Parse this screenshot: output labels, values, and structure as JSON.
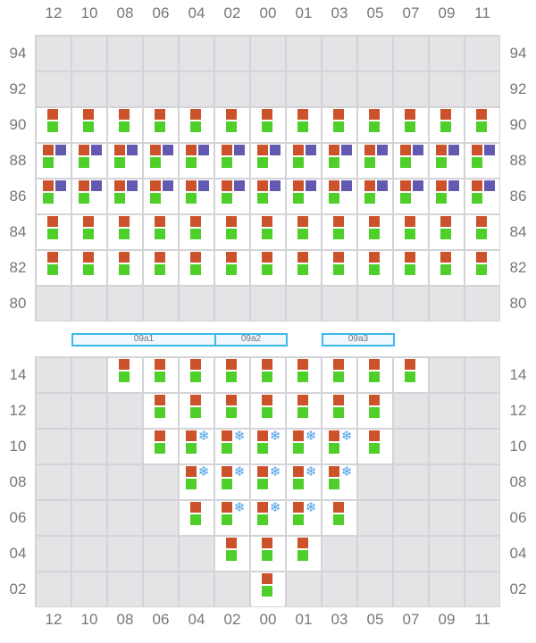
{
  "columns": [
    "12",
    "10",
    "08",
    "06",
    "04",
    "02",
    "00",
    "01",
    "03",
    "05",
    "07",
    "09",
    "11"
  ],
  "legend_codes": {
    ".": "empty",
    "a": "red+green",
    "b": "red+purple+green",
    "s": "red+snowflake+green"
  },
  "colors": {
    "red": "#cc522b",
    "green": "#4fcf2a",
    "purple": "#625ab0",
    "snowflake": "#4a9fe8",
    "empty": "#e4e4e7",
    "grid": "#d4d4d8",
    "bar_border": "#3fb8ee"
  },
  "snowflake_glyph": "❄",
  "top_section": {
    "rows": [
      {
        "label": "94",
        "cells": "............."
      },
      {
        "label": "92",
        "cells": "............."
      },
      {
        "label": "90",
        "cells": "aaaaaaaaaaaaa"
      },
      {
        "label": "88",
        "cells": "bbbbbbbbbbbbb"
      },
      {
        "label": "86",
        "cells": "bbbbbbbbbbbbb"
      },
      {
        "label": "84",
        "cells": "aaaaaaaaaaaaa"
      },
      {
        "label": "82",
        "cells": "aaaaaaaaaaaaa"
      },
      {
        "label": "80",
        "cells": "............."
      }
    ]
  },
  "zones": [
    {
      "label": "09a1",
      "from_col": "10",
      "to_col": "02"
    },
    {
      "label": "09a2",
      "from_col": "02",
      "to_col": "01"
    },
    {
      "label": "09a3",
      "from_col": "03",
      "to_col": "07"
    }
  ],
  "bottom_section": {
    "rows": [
      {
        "label": "14",
        "cells": "..aaaaaaaaa.."
      },
      {
        "label": "12",
        "cells": "...aaaaaaa..."
      },
      {
        "label": "10",
        "cells": "...asssssa..."
      },
      {
        "label": "08",
        "cells": "....sssss...."
      },
      {
        "label": "06",
        "cells": "....asssa...."
      },
      {
        "label": "04",
        "cells": ".....aaa....."
      },
      {
        "label": "02",
        "cells": "......a......"
      }
    ]
  }
}
